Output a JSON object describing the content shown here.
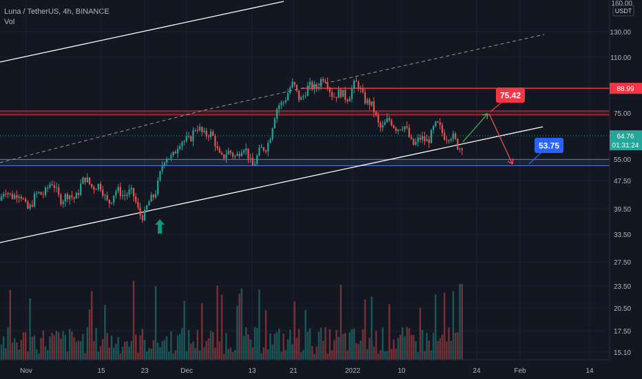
{
  "header": {
    "symbol_line": "Luna / TetherUS, 4h, BINANCE",
    "indicator": "Vol"
  },
  "colors": {
    "background": "#131722",
    "up": "#26a69a",
    "down": "#ef5350",
    "resistance": "#f23645",
    "support": "#5b7bd6",
    "channel": "#ffffff",
    "label_red": "#f23645",
    "label_blue": "#2962ff",
    "arrow_teal": "#089981",
    "arrow_green": "#4caf50"
  },
  "axis": {
    "currency": "USDT",
    "top_partial_label": "160.00",
    "countdown": "01:31:24"
  },
  "chart_data": {
    "type": "candlestick",
    "title": "",
    "y_scale": "log",
    "y_ticks": [
      "130.00",
      "110.00",
      "75.00",
      "55.00",
      "47.50",
      "39.50",
      "33.50",
      "27.50",
      "23.50",
      "20.50",
      "17.50",
      "15.10"
    ],
    "x_ticks": [
      "Nov",
      "15",
      "23",
      "Dec",
      "13",
      "21",
      "2022",
      "10",
      "24",
      "Feb",
      "14"
    ],
    "price_labels": {
      "resistance": "88.99",
      "last_price": "64.76"
    },
    "key_points": [
      {
        "label": "Nov",
        "close": 42
      },
      {
        "label": "15",
        "close": 46
      },
      {
        "label": "23",
        "close": 40
      },
      {
        "label": "Dec",
        "close": 68
      },
      {
        "label": "13",
        "close": 54
      },
      {
        "label": "21",
        "close": 90
      },
      {
        "label": "2022",
        "close": 88
      },
      {
        "label": "10",
        "close": 65
      },
      {
        "label": "end",
        "close": 64.76
      }
    ],
    "horizontal_levels": [
      {
        "price": 88.99,
        "kind": "resistance"
      },
      {
        "price": 76.5,
        "kind": "resistance-zone"
      },
      {
        "price": 74.5,
        "kind": "resistance-zone"
      },
      {
        "price": 55.3,
        "kind": "support"
      },
      {
        "price": 53.0,
        "kind": "support"
      }
    ],
    "annotations": [
      {
        "text": "75.42",
        "kind": "target-up"
      },
      {
        "text": "53.75",
        "kind": "target-down"
      }
    ],
    "volume_series": "Vol"
  }
}
